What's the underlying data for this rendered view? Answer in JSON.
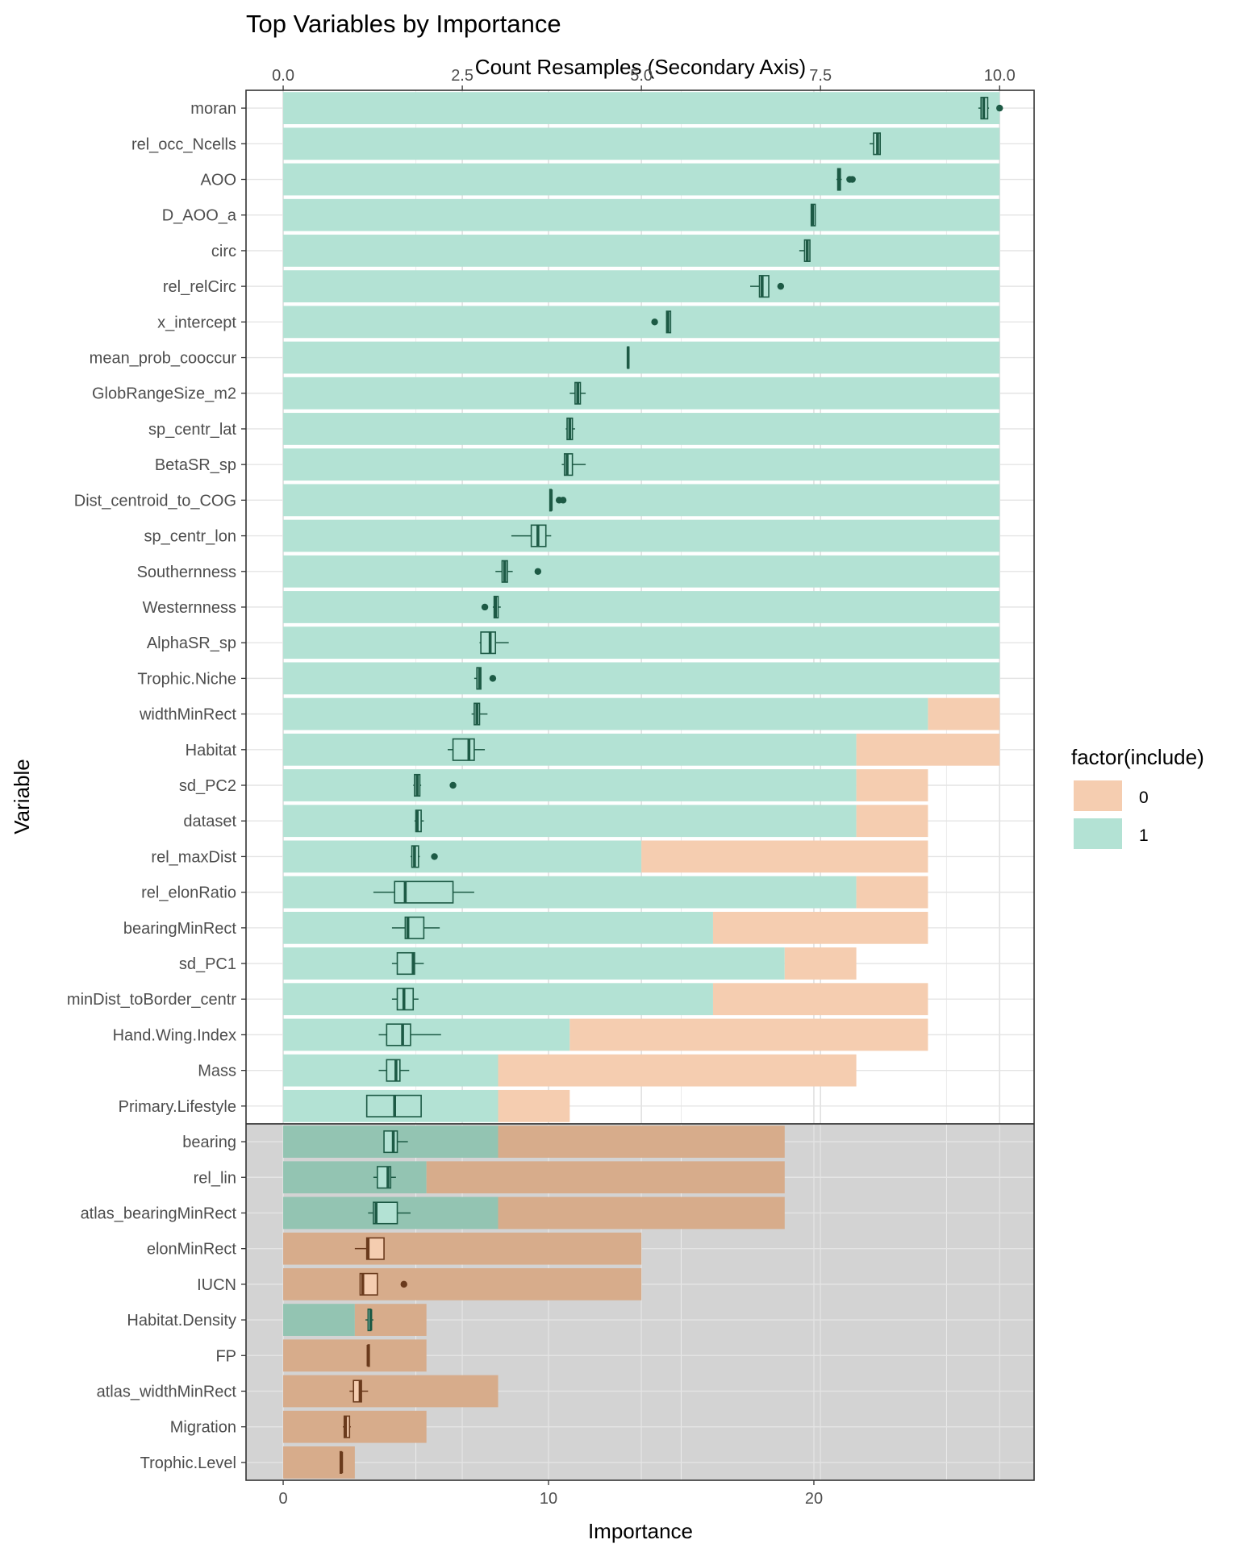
{
  "chart_data": {
    "type": "bar",
    "title": "Top Variables by Importance",
    "xlabel": "Importance",
    "ylabel": "Variable",
    "secondary_xlabel": "Count Resamples (Secondary Axis)",
    "xlim": [
      -1.4,
      28.3
    ],
    "x_ticks": [
      0,
      10,
      20
    ],
    "x_tick_labels": [
      "0",
      "10",
      "20"
    ],
    "secondary_ticks": [
      0,
      2.5,
      5.0,
      7.5,
      10.0
    ],
    "secondary_tick_labels": [
      "0.0",
      "2.5",
      "5.0",
      "7.5",
      "10.0"
    ],
    "secondary_scale": 2.7,
    "grid": true,
    "legend": {
      "title": "factor(include)",
      "position": "right",
      "entries": [
        {
          "label": "0",
          "color": "#f5cdb0"
        },
        {
          "label": "1",
          "color": "#b3e2d4"
        }
      ]
    },
    "colors": {
      "include_0": "#f5cdb0",
      "include_1": "#b3e2d4",
      "include_0_shaded": "#d7ac8b",
      "include_1_shaded": "#93c4b2",
      "box_1": "#1d5a45",
      "box_0": "#6a3a1c",
      "shaded_panel": "#d3d3d3"
    },
    "shaded_from_variable": "bearing",
    "series_description": "Bars show count of resamples (secondary axis) split by include=1 (teal) and include=0 (peach); boxplots show importance distribution.",
    "variables": [
      {
        "name": "moran",
        "count1": 10,
        "count0": 0,
        "box": [
          26.2,
          26.3,
          26.4,
          26.55,
          26.6
        ],
        "outliers": [
          27.0
        ]
      },
      {
        "name": "rel_occ_Ncells",
        "count1": 10,
        "count0": 0,
        "box": [
          22.1,
          22.25,
          22.4,
          22.5,
          22.5
        ],
        "outliers": []
      },
      {
        "name": "AOO",
        "count1": 10,
        "count0": 0,
        "box": [
          20.85,
          20.9,
          20.95,
          21.0,
          21.05
        ],
        "outliers": [
          21.35,
          21.45
        ]
      },
      {
        "name": "D_AOO_a",
        "count1": 10,
        "count0": 0,
        "box": [
          19.9,
          19.9,
          19.95,
          20.05,
          20.05
        ],
        "outliers": []
      },
      {
        "name": "circ",
        "count1": 10,
        "count0": 0,
        "box": [
          19.45,
          19.65,
          19.75,
          19.85,
          19.85
        ],
        "outliers": []
      },
      {
        "name": "rel_relCirc",
        "count1": 10,
        "count0": 0,
        "box": [
          17.6,
          17.95,
          18.05,
          18.3,
          18.3
        ],
        "outliers": [
          18.75
        ]
      },
      {
        "name": "x_intercept",
        "count1": 10,
        "count0": 0,
        "box": [
          14.45,
          14.45,
          14.5,
          14.6,
          14.6
        ],
        "outliers": [
          14.0
        ]
      },
      {
        "name": "mean_prob_cooccur",
        "count1": 10,
        "count0": 0,
        "box": [
          12.95,
          12.98,
          13.0,
          13.02,
          13.05
        ],
        "outliers": []
      },
      {
        "name": "GlobRangeSize_m2",
        "count1": 10,
        "count0": 0,
        "box": [
          10.8,
          11.0,
          11.1,
          11.2,
          11.4
        ],
        "outliers": []
      },
      {
        "name": "sp_centr_lat",
        "count1": 10,
        "count0": 0,
        "box": [
          10.65,
          10.7,
          10.8,
          10.9,
          11.0
        ],
        "outliers": []
      },
      {
        "name": "BetaSR_sp",
        "count1": 10,
        "count0": 0,
        "box": [
          10.5,
          10.6,
          10.7,
          10.9,
          11.4
        ],
        "outliers": []
      },
      {
        "name": "Dist_centroid_to_COG",
        "count1": 10,
        "count0": 0,
        "box": [
          10.05,
          10.05,
          10.1,
          10.1,
          10.1
        ],
        "outliers": [
          10.4,
          10.55
        ]
      },
      {
        "name": "sp_centr_lon",
        "count1": 10,
        "count0": 0,
        "box": [
          8.6,
          9.35,
          9.6,
          9.9,
          10.1
        ],
        "outliers": []
      },
      {
        "name": "Southernness",
        "count1": 10,
        "count0": 0,
        "box": [
          8.0,
          8.25,
          8.35,
          8.45,
          8.65
        ],
        "outliers": [
          9.6
        ]
      },
      {
        "name": "Westernness",
        "count1": 10,
        "count0": 0,
        "box": [
          7.9,
          7.95,
          8.0,
          8.1,
          8.2
        ],
        "outliers": [
          7.6
        ]
      },
      {
        "name": "AlphaSR_sp",
        "count1": 10,
        "count0": 0,
        "box": [
          7.4,
          7.45,
          7.8,
          8.0,
          8.5
        ],
        "outliers": []
      },
      {
        "name": "Trophic.Niche",
        "count1": 10,
        "count0": 0,
        "box": [
          7.2,
          7.3,
          7.4,
          7.45,
          7.45
        ],
        "outliers": [
          7.9
        ]
      },
      {
        "name": "widthMinRect",
        "count1": 9,
        "count0": 1,
        "box": [
          7.1,
          7.2,
          7.3,
          7.4,
          7.7
        ],
        "outliers": []
      },
      {
        "name": "Habitat",
        "count1": 8,
        "count0": 2,
        "box": [
          6.2,
          6.4,
          7.0,
          7.2,
          7.6
        ],
        "outliers": []
      },
      {
        "name": "sd_PC2",
        "count1": 8,
        "count0": 1,
        "box": [
          4.9,
          4.95,
          5.05,
          5.15,
          5.2
        ],
        "outliers": [
          6.4
        ]
      },
      {
        "name": "dataset",
        "count1": 8,
        "count0": 1,
        "box": [
          4.95,
          5.0,
          5.05,
          5.2,
          5.3
        ],
        "outliers": []
      },
      {
        "name": "rel_maxDist",
        "count1": 5,
        "count0": 4,
        "box": [
          4.8,
          4.85,
          4.95,
          5.1,
          5.15
        ],
        "outliers": [
          5.7
        ]
      },
      {
        "name": "rel_elonRatio",
        "count1": 8,
        "count0": 1,
        "box": [
          3.4,
          4.2,
          4.6,
          6.4,
          7.2
        ],
        "outliers": []
      },
      {
        "name": "bearingMinRect",
        "count1": 6,
        "count0": 3,
        "box": [
          4.1,
          4.6,
          4.7,
          5.3,
          5.9
        ],
        "outliers": []
      },
      {
        "name": "sd_PC1",
        "count1": 7,
        "count0": 1,
        "box": [
          4.1,
          4.3,
          4.9,
          4.95,
          5.3
        ],
        "outliers": []
      },
      {
        "name": "minDist_toBorder_centr",
        "count1": 6,
        "count0": 3,
        "box": [
          4.1,
          4.3,
          4.55,
          4.9,
          5.1
        ],
        "outliers": []
      },
      {
        "name": "Hand.Wing.Index",
        "count1": 4,
        "count0": 5,
        "box": [
          3.6,
          3.9,
          4.5,
          4.8,
          5.95
        ],
        "outliers": []
      },
      {
        "name": "Mass",
        "count1": 3,
        "count0": 5,
        "box": [
          3.6,
          3.9,
          4.25,
          4.4,
          4.75
        ],
        "outliers": []
      },
      {
        "name": "Primary.Lifestyle",
        "count1": 3,
        "count0": 1,
        "box": [
          3.15,
          3.15,
          4.2,
          5.2,
          5.2
        ],
        "outliers": []
      },
      {
        "name": "bearing",
        "count1": 3,
        "count0": 4,
        "box": [
          3.8,
          3.8,
          4.15,
          4.3,
          4.7
        ],
        "outliers": []
      },
      {
        "name": "rel_lin",
        "count1": 2,
        "count0": 5,
        "box": [
          3.4,
          3.55,
          3.95,
          4.05,
          4.25
        ],
        "outliers": []
      },
      {
        "name": "atlas_bearingMinRect",
        "count1": 3,
        "count0": 4,
        "box": [
          3.2,
          3.4,
          3.5,
          4.3,
          4.8
        ],
        "outliers": []
      },
      {
        "name": "elonMinRect",
        "count1": 0,
        "count0": 5,
        "box": [
          2.7,
          3.15,
          3.2,
          3.8,
          3.8
        ],
        "outliers": []
      },
      {
        "name": "IUCN",
        "count1": 0,
        "count0": 5,
        "box": [
          2.9,
          2.9,
          3.0,
          3.55,
          3.55
        ],
        "outliers": [
          4.55
        ]
      },
      {
        "name": "Habitat.Density",
        "count1": 1,
        "count0": 1,
        "box": [
          3.1,
          3.2,
          3.3,
          3.3,
          3.4
        ],
        "outliers": []
      },
      {
        "name": "FP",
        "count1": 0,
        "count0": 2,
        "box": [
          3.2,
          3.2,
          3.2,
          3.2,
          3.2
        ],
        "outliers": []
      },
      {
        "name": "atlas_widthMinRect",
        "count1": 0,
        "count0": 3,
        "box": [
          2.5,
          2.65,
          2.9,
          2.95,
          3.2
        ],
        "outliers": []
      },
      {
        "name": "Migration",
        "count1": 0,
        "count0": 2,
        "box": [
          2.25,
          2.3,
          2.35,
          2.5,
          2.55
        ],
        "outliers": []
      },
      {
        "name": "Trophic.Level",
        "count1": 0,
        "count0": 1,
        "box": [
          2.15,
          2.15,
          2.2,
          2.2,
          2.2
        ],
        "outliers": []
      }
    ]
  }
}
